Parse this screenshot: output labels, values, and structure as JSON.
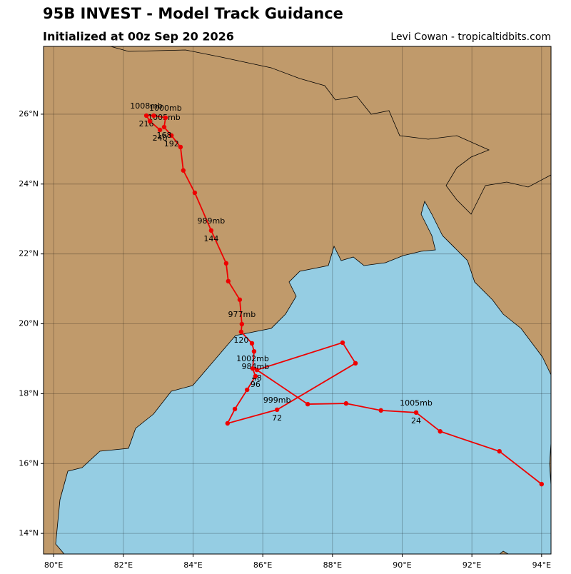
{
  "header": {
    "title": "95B INVEST - Model Track Guidance",
    "subtitle": "Initialized at 00z Sep 20 2026",
    "credit": "Levi Cowan - tropicaltidbits.com"
  },
  "map": {
    "xlim": [
      79.71,
      94.27
    ],
    "ylim": [
      13.41,
      27.94
    ],
    "xticks": [
      {
        "value": 80,
        "label": "80°E"
      },
      {
        "value": 82,
        "label": "82°E"
      },
      {
        "value": 84,
        "label": "84°E"
      },
      {
        "value": 86,
        "label": "86°E"
      },
      {
        "value": 88,
        "label": "88°E"
      },
      {
        "value": 90,
        "label": "90°E"
      },
      {
        "value": 92,
        "label": "92°E"
      },
      {
        "value": 94,
        "label": "94°E"
      }
    ],
    "yticks": [
      {
        "value": 14,
        "label": "14°N"
      },
      {
        "value": 16,
        "label": "16°N"
      },
      {
        "value": 18,
        "label": "18°N"
      },
      {
        "value": 20,
        "label": "20°N"
      },
      {
        "value": 22,
        "label": "22°N"
      },
      {
        "value": 24,
        "label": "24°N"
      },
      {
        "value": 26,
        "label": "26°N"
      }
    ],
    "track": {
      "color": "#ee0000",
      "points": [
        {
          "lon": 94.0,
          "lat": 15.41
        },
        {
          "lon": 92.79,
          "lat": 16.35
        },
        {
          "lon": 91.09,
          "lat": 16.92
        },
        {
          "lon": 90.4,
          "lat": 17.46,
          "hour": "24",
          "pressure": "1005mb"
        },
        {
          "lon": 89.39,
          "lat": 17.52
        },
        {
          "lon": 88.39,
          "lat": 17.72
        },
        {
          "lon": 87.29,
          "lat": 17.7
        },
        {
          "lon": 85.83,
          "lat": 18.68,
          "hour": "48"
        },
        {
          "lon": 88.29,
          "lat": 19.46
        },
        {
          "lon": 88.66,
          "lat": 18.87
        },
        {
          "lon": 86.41,
          "lat": 17.54,
          "hour": "72",
          "pressure": "999mb"
        },
        {
          "lon": 84.99,
          "lat": 17.15
        },
        {
          "lon": 85.2,
          "lat": 17.56
        },
        {
          "lon": 85.55,
          "lat": 18.11
        },
        {
          "lon": 85.79,
          "lat": 18.5,
          "hour": "96",
          "pressure": "984mb"
        },
        {
          "lon": 85.71,
          "lat": 18.72,
          "pressure": "1002mb"
        },
        {
          "lon": 85.75,
          "lat": 19.21
        },
        {
          "lon": 85.69,
          "lat": 19.44
        },
        {
          "lon": 85.38,
          "lat": 19.77,
          "hour": "120"
        },
        {
          "lon": 85.4,
          "lat": 19.99,
          "pressure": "977mb"
        },
        {
          "lon": 85.34,
          "lat": 20.69
        },
        {
          "lon": 85.01,
          "lat": 21.22
        },
        {
          "lon": 84.95,
          "lat": 21.73
        },
        {
          "lon": 84.52,
          "lat": 22.67,
          "hour": "144",
          "pressure": "989mb"
        },
        {
          "lon": 84.05,
          "lat": 23.75
        },
        {
          "lon": 83.72,
          "lat": 24.39
        },
        {
          "lon": 83.64,
          "lat": 25.06
        },
        {
          "lon": 83.38,
          "lat": 25.39,
          "hour": "192"
        },
        {
          "lon": 83.17,
          "lat": 25.63,
          "hour": "168",
          "pressure": "1005mb"
        },
        {
          "lon": 83.21,
          "lat": 25.9,
          "pressure": "1000mb"
        },
        {
          "lon": 82.87,
          "lat": 25.96
        },
        {
          "lon": 82.66,
          "lat": 25.96,
          "hour": "216",
          "pressure": "1008mb"
        },
        {
          "lon": 82.76,
          "lat": 25.8
        },
        {
          "lon": 83.05,
          "lat": 25.55,
          "hour": "240"
        }
      ]
    }
  }
}
